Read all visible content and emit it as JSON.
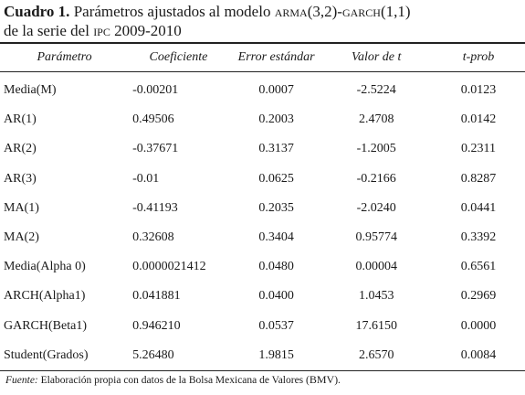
{
  "title": {
    "label": "Cuadro 1.",
    "line1": "Parámetros ajustados al modelo ARMA(3,2)-GARCH(1,1)",
    "line2": "de la serie del IPC 2009-2010"
  },
  "table": {
    "header": [
      "Parámetro",
      "Coeficiente",
      "Error estándar",
      "Valor de t",
      "t-prob"
    ],
    "rows": [
      [
        "Media(M)",
        "-0.00201",
        "0.0007",
        "-2.5224",
        "0.0123"
      ],
      [
        "AR(1)",
        "0.49506",
        "0.2003",
        "2.4708",
        "0.0142"
      ],
      [
        "AR(2)",
        "-0.37671",
        "0.3137",
        "-1.2005",
        "0.2311"
      ],
      [
        "AR(3)",
        "-0.01",
        "0.0625",
        "-0.2166",
        "0.8287"
      ],
      [
        "MA(1)",
        "-0.41193",
        "0.2035",
        "-2.0240",
        "0.0441"
      ],
      [
        "MA(2)",
        "0.32608",
        "0.3404",
        "0.95774",
        "0.3392"
      ],
      [
        "Media(Alpha 0)",
        "0.0000021412",
        "0.0480",
        "0.00004",
        "0.6561"
      ],
      [
        "ARCH(Alpha1)",
        "0.041881",
        "0.0400",
        "1.0453",
        "0.2969"
      ],
      [
        "GARCH(Beta1)",
        "0.946210",
        "0.0537",
        "17.6150",
        "0.0000"
      ],
      [
        "Student(Grados)",
        "5.26480",
        "1.9815",
        "2.6570",
        "0.0084"
      ]
    ]
  },
  "footer": {
    "label": "Fuente:",
    "text": "Elaboración propia con datos de la Bolsa Mexicana de Valores (BMV)."
  }
}
